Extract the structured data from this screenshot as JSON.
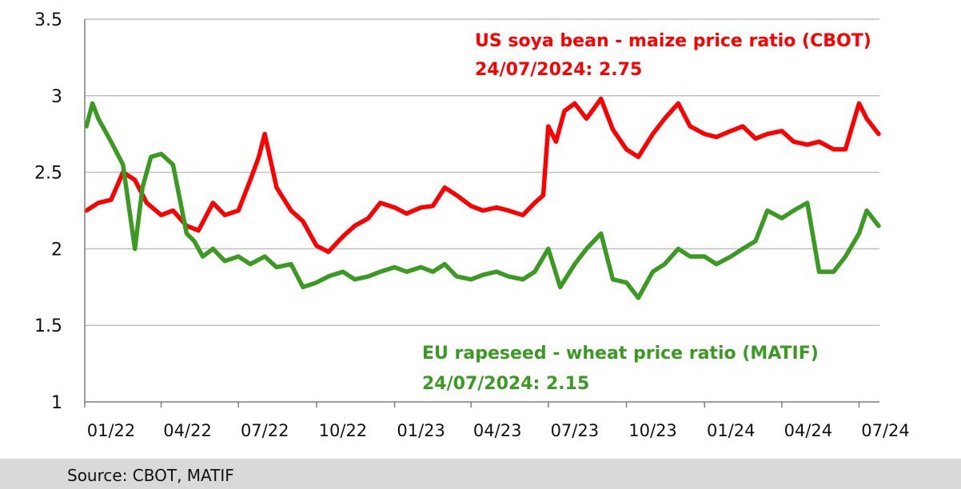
{
  "source": "Source: CBOT, MATIF",
  "chart_data": {
    "type": "line",
    "xlabel": "",
    "ylabel": "",
    "ylim": [
      1,
      3.5
    ],
    "yticks": [
      "3.5",
      "3",
      "2.5",
      "2",
      "1.5",
      "1"
    ],
    "xticks": [
      "01/22",
      "04/22",
      "07/22",
      "10/22",
      "01/23",
      "04/23",
      "07/23",
      "10/23",
      "01/24",
      "04/24",
      "07/24"
    ],
    "grid": "horizontal",
    "colors": {
      "us": "#ff0000",
      "eu": "#3a9a22",
      "grid": "#bfbfbf",
      "axis": "#7f7f7f"
    },
    "annotations": [
      {
        "series": "us",
        "line1": "US soya bean - maize price ratio (CBOT)",
        "line2": "24/07/2024:  2.75"
      },
      {
        "series": "eu",
        "line1": "EU rapeseed - wheat price ratio (MATIF)",
        "line2": "24/07/2024:  2.15"
      }
    ],
    "series": [
      {
        "id": "us",
        "x": [
          "2022-01-03",
          "2022-01-17",
          "2022-02-01",
          "2022-02-15",
          "2022-03-01",
          "2022-03-15",
          "2022-04-01",
          "2022-04-15",
          "2022-05-01",
          "2022-05-15",
          "2022-06-01",
          "2022-06-15",
          "2022-07-01",
          "2022-07-15",
          "2022-07-25",
          "2022-08-01",
          "2022-08-15",
          "2022-09-01",
          "2022-09-15",
          "2022-10-01",
          "2022-10-15",
          "2022-11-01",
          "2022-11-15",
          "2022-12-01",
          "2022-12-15",
          "2023-01-01",
          "2023-01-15",
          "2023-02-01",
          "2023-02-15",
          "2023-03-01",
          "2023-03-15",
          "2023-04-01",
          "2023-04-15",
          "2023-05-01",
          "2023-05-15",
          "2023-06-01",
          "2023-06-15",
          "2023-06-25",
          "2023-07-01",
          "2023-07-10",
          "2023-07-20",
          "2023-08-01",
          "2023-08-15",
          "2023-09-01",
          "2023-09-15",
          "2023-10-01",
          "2023-10-15",
          "2023-11-01",
          "2023-11-15",
          "2023-12-01",
          "2023-12-15",
          "2024-01-01",
          "2024-01-15",
          "2024-02-01",
          "2024-02-15",
          "2024-03-01",
          "2024-03-15",
          "2024-04-01",
          "2024-04-15",
          "2024-05-01",
          "2024-05-15",
          "2024-06-01",
          "2024-06-15",
          "2024-07-01",
          "2024-07-10",
          "2024-07-24"
        ],
        "values": [
          2.25,
          2.3,
          2.32,
          2.5,
          2.45,
          2.3,
          2.22,
          2.25,
          2.15,
          2.12,
          2.3,
          2.22,
          2.25,
          2.45,
          2.6,
          2.75,
          2.4,
          2.25,
          2.18,
          2.02,
          1.98,
          2.08,
          2.15,
          2.2,
          2.3,
          2.27,
          2.23,
          2.27,
          2.28,
          2.4,
          2.35,
          2.28,
          2.25,
          2.27,
          2.25,
          2.22,
          2.3,
          2.35,
          2.8,
          2.7,
          2.9,
          2.95,
          2.85,
          2.98,
          2.78,
          2.65,
          2.6,
          2.75,
          2.85,
          2.95,
          2.8,
          2.75,
          2.73,
          2.77,
          2.8,
          2.72,
          2.75,
          2.77,
          2.7,
          2.68,
          2.7,
          2.65,
          2.65,
          2.95,
          2.85,
          2.75
        ]
      },
      {
        "id": "eu",
        "x": [
          "2022-01-03",
          "2022-01-10",
          "2022-01-17",
          "2022-02-01",
          "2022-02-15",
          "2022-03-01",
          "2022-03-10",
          "2022-03-20",
          "2022-04-01",
          "2022-04-15",
          "2022-05-01",
          "2022-05-10",
          "2022-05-20",
          "2022-06-01",
          "2022-06-15",
          "2022-07-01",
          "2022-07-15",
          "2022-08-01",
          "2022-08-15",
          "2022-09-01",
          "2022-09-15",
          "2022-10-01",
          "2022-10-15",
          "2022-11-01",
          "2022-11-15",
          "2022-12-01",
          "2022-12-15",
          "2023-01-01",
          "2023-01-15",
          "2023-02-01",
          "2023-02-15",
          "2023-03-01",
          "2023-03-15",
          "2023-04-01",
          "2023-04-15",
          "2023-05-01",
          "2023-05-15",
          "2023-06-01",
          "2023-06-15",
          "2023-07-01",
          "2023-07-15",
          "2023-08-01",
          "2023-08-15",
          "2023-09-01",
          "2023-09-15",
          "2023-10-01",
          "2023-10-15",
          "2023-11-01",
          "2023-11-15",
          "2023-12-01",
          "2023-12-15",
          "2024-01-01",
          "2024-01-15",
          "2024-02-01",
          "2024-02-15",
          "2024-03-01",
          "2024-03-15",
          "2024-04-01",
          "2024-04-15",
          "2024-05-01",
          "2024-05-15",
          "2024-06-01",
          "2024-06-15",
          "2024-07-01",
          "2024-07-10",
          "2024-07-24"
        ],
        "values": [
          2.8,
          2.95,
          2.85,
          2.7,
          2.55,
          2.0,
          2.4,
          2.6,
          2.62,
          2.55,
          2.1,
          2.05,
          1.95,
          2.0,
          1.92,
          1.95,
          1.9,
          1.95,
          1.88,
          1.9,
          1.75,
          1.78,
          1.82,
          1.85,
          1.8,
          1.82,
          1.85,
          1.88,
          1.85,
          1.88,
          1.85,
          1.9,
          1.82,
          1.8,
          1.83,
          1.85,
          1.82,
          1.8,
          1.85,
          2.0,
          1.75,
          1.9,
          2.0,
          2.1,
          1.8,
          1.78,
          1.68,
          1.85,
          1.9,
          2.0,
          1.95,
          1.95,
          1.9,
          1.95,
          2.0,
          2.05,
          2.25,
          2.2,
          2.25,
          2.3,
          1.85,
          1.85,
          1.95,
          2.1,
          2.25,
          2.15
        ]
      }
    ]
  }
}
